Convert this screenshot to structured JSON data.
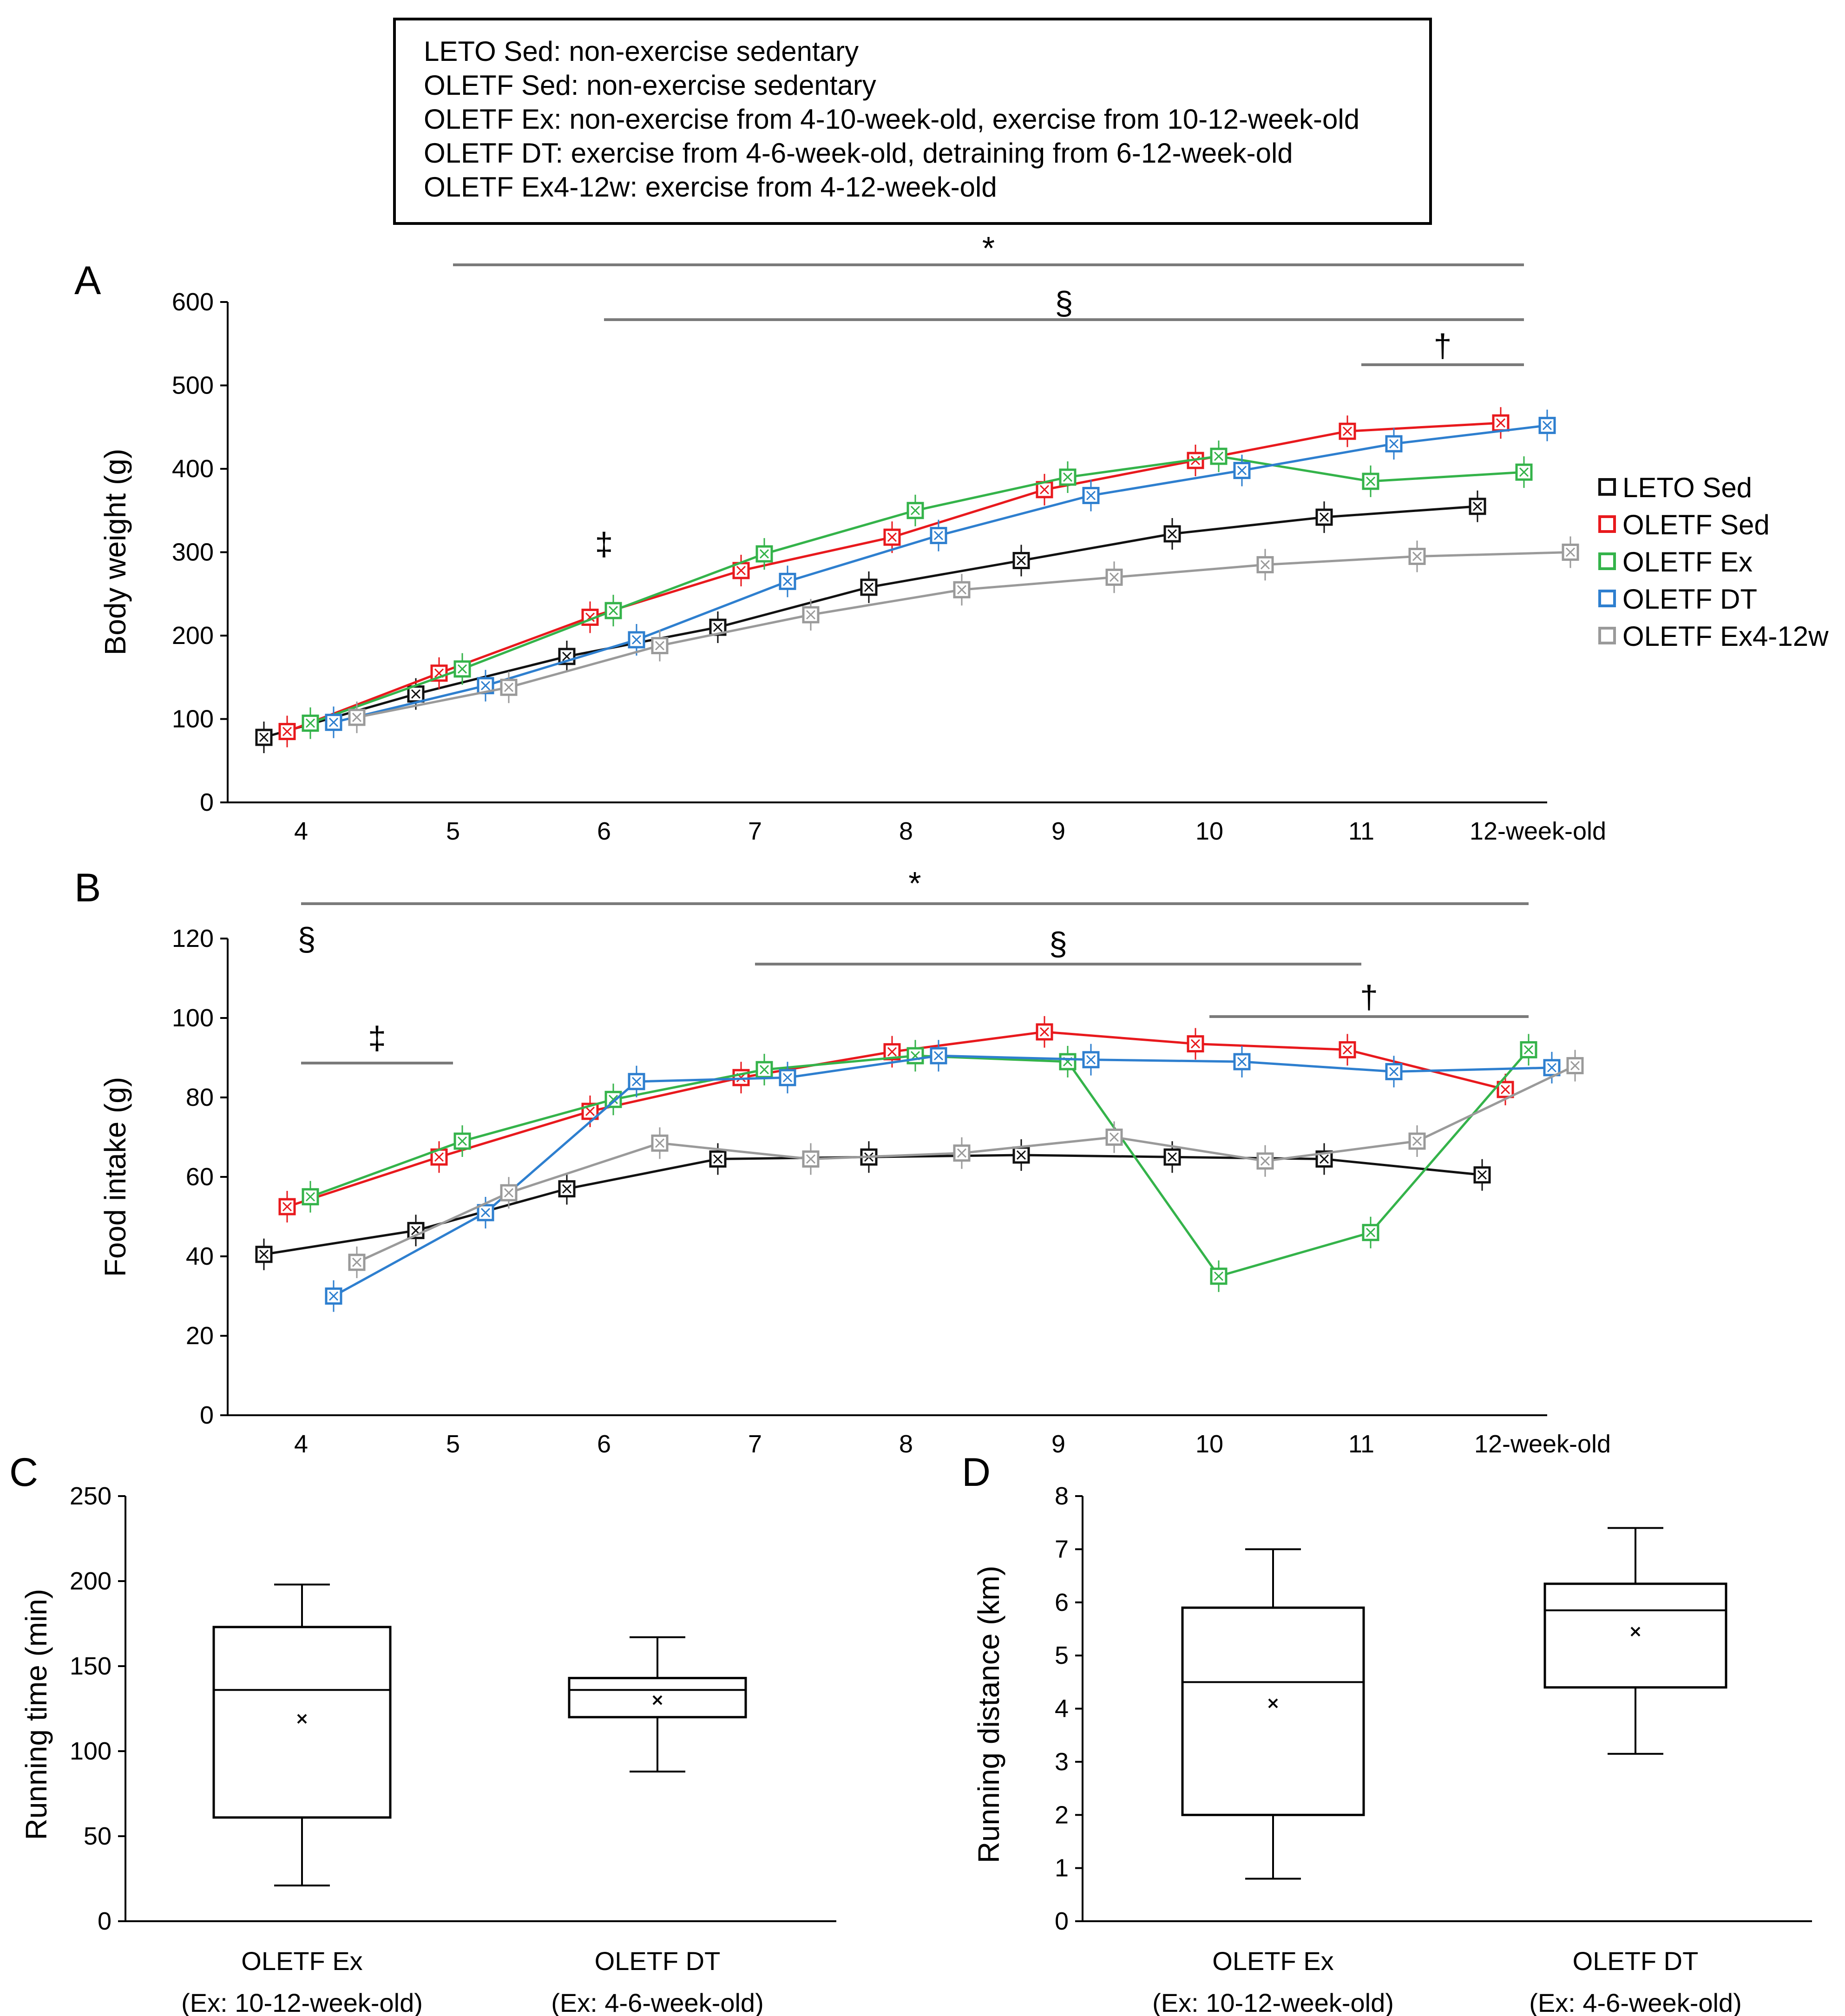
{
  "legend_box": [
    "LETO Sed: non-exercise sedentary",
    "OLETF Sed: non-exercise sedentary",
    "OLETF Ex: non-exercise from 4-10-week-old, exercise from 10-12-week-old",
    "OLETF DT: exercise from 4-6-week-old, detraining from 6-12-week-old",
    "OLETF Ex4-12w: exercise from 4-12-week-old"
  ],
  "colors": {
    "LETO Sed": "#111111",
    "OLETF Sed": "#e8191d",
    "OLETF Ex": "#34b34a",
    "OLETF DT": "#2e7fcf",
    "OLETF Ex4-12w": "#9a9a9a",
    "sig_bar": "#7a7a7a"
  },
  "series_legend": [
    "LETO Sed",
    "OLETF Sed",
    "OLETF Ex",
    "OLETF DT",
    "OLETF Ex4-12w"
  ],
  "panel_labels": {
    "A": "A",
    "B": "B",
    "C": "C",
    "D": "D"
  },
  "chart_data": [
    {
      "id": "A",
      "type": "line",
      "ylabel": "Body weight (g)",
      "xlabel": "",
      "categories": [
        "4",
        "5",
        "6",
        "7",
        "8",
        "9",
        "10",
        "11",
        "12-week-old"
      ],
      "ylim": [
        0,
        600
      ],
      "yticks": [
        0,
        100,
        200,
        300,
        400,
        500,
        600
      ],
      "series": [
        {
          "name": "LETO Sed",
          "values": [
            78,
            130,
            175,
            210,
            258,
            290,
            322,
            342,
            355
          ]
        },
        {
          "name": "OLETF Sed",
          "values": [
            85,
            155,
            222,
            278,
            318,
            375,
            410,
            445,
            455
          ]
        },
        {
          "name": "OLETF Ex",
          "values": [
            95,
            160,
            230,
            298,
            350,
            390,
            415,
            385,
            396
          ]
        },
        {
          "name": "OLETF DT",
          "values": [
            96,
            140,
            195,
            265,
            320,
            368,
            398,
            430,
            452
          ]
        },
        {
          "name": "OLETF Ex4-12w",
          "values": [
            102,
            138,
            188,
            225,
            255,
            270,
            285,
            295,
            300
          ]
        }
      ],
      "significance": [
        {
          "symbol": "*",
          "from": "5",
          "to": "12-week-old"
        },
        {
          "symbol": "§",
          "from": "6",
          "to": "12-week-old"
        },
        {
          "symbol": "†",
          "from": "11",
          "to": "12-week-old"
        },
        {
          "symbol": "‡",
          "at": "6"
        }
      ]
    },
    {
      "id": "B",
      "type": "line",
      "ylabel": "Food intake (g)",
      "xlabel": "",
      "categories": [
        "4",
        "5",
        "6",
        "7",
        "8",
        "9",
        "10",
        "11",
        "12-week-old"
      ],
      "ylim": [
        0,
        120
      ],
      "yticks": [
        0,
        20,
        40,
        60,
        80,
        100,
        120
      ],
      "series": [
        {
          "name": "LETO Sed",
          "values": [
            40.5,
            46.5,
            57,
            64.5,
            65,
            65.5,
            65,
            64.5,
            60.5
          ]
        },
        {
          "name": "OLETF Sed",
          "values": [
            52.5,
            65,
            76.5,
            85,
            91.5,
            96.5,
            93.5,
            92,
            82
          ]
        },
        {
          "name": "OLETF Ex",
          "values": [
            55,
            69,
            79.5,
            87,
            90.5,
            89,
            35,
            46,
            92
          ]
        },
        {
          "name": "OLETF DT",
          "values": [
            30,
            51,
            84,
            85,
            90.5,
            89.5,
            89,
            86.5,
            87.5
          ]
        },
        {
          "name": "OLETF Ex4-12w",
          "values": [
            38.5,
            56,
            68.5,
            64.5,
            66,
            70,
            64,
            69,
            88
          ]
        }
      ],
      "significance": [
        {
          "symbol": "*",
          "from": "4",
          "to": "12-week-old"
        },
        {
          "symbol": "§",
          "at": "4"
        },
        {
          "symbol": "§",
          "from": "7",
          "to": "11"
        },
        {
          "symbol": "†",
          "from": "10",
          "to": "12-week-old"
        },
        {
          "symbol": "‡",
          "from": "4",
          "to": "5"
        }
      ]
    },
    {
      "id": "C",
      "type": "box",
      "ylabel": "Running time (min)",
      "ylim": [
        0,
        250
      ],
      "yticks": [
        0,
        50,
        100,
        150,
        200,
        250
      ],
      "groups": [
        {
          "label": "OLETF Ex",
          "sublabel": "(Ex: 10-12-week-old)",
          "min": 21,
          "q1": 61,
          "median": 136,
          "q3": 173,
          "max": 198,
          "mean": 119
        },
        {
          "label": "OLETF DT",
          "sublabel": "(Ex: 4-6-week-old)",
          "min": 88,
          "q1": 120,
          "median": 136,
          "q3": 143,
          "max": 167,
          "mean": 130
        }
      ]
    },
    {
      "id": "D",
      "type": "box",
      "ylabel": "Running distance (km)",
      "ylim": [
        0,
        8
      ],
      "yticks": [
        0,
        1,
        2,
        3,
        4,
        5,
        6,
        7,
        8
      ],
      "groups": [
        {
          "label": "OLETF Ex",
          "sublabel": "(Ex: 10-12-week-old)",
          "min": 0.8,
          "q1": 2.0,
          "median": 4.5,
          "q3": 5.9,
          "max": 7.0,
          "mean": 4.1
        },
        {
          "label": "OLETF DT",
          "sublabel": "(Ex: 4-6-week-old)",
          "min": 3.15,
          "q1": 4.4,
          "median": 5.85,
          "q3": 6.35,
          "max": 7.4,
          "mean": 5.45
        }
      ]
    }
  ]
}
